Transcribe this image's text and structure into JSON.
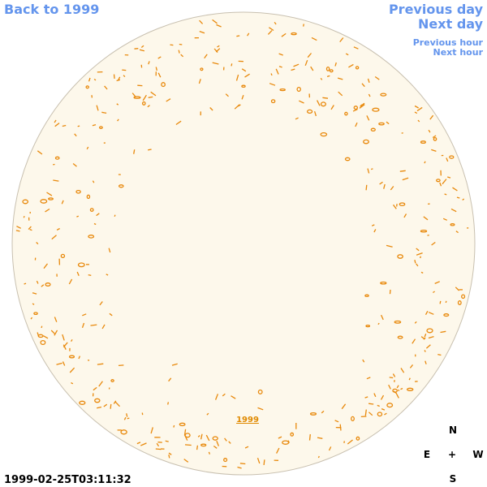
{
  "header": {
    "back_link": "Back to 1999",
    "previous_day": "Previous day",
    "next_day": "Next day",
    "previous_hour": "Previous hour",
    "next_hour": "Next hour"
  },
  "map": {
    "year_label": "1999",
    "timestamp": "1999-02-25T03:11:32"
  },
  "compass": {
    "north": "N",
    "east": "E",
    "center": "+",
    "west": "W",
    "south": "S"
  }
}
